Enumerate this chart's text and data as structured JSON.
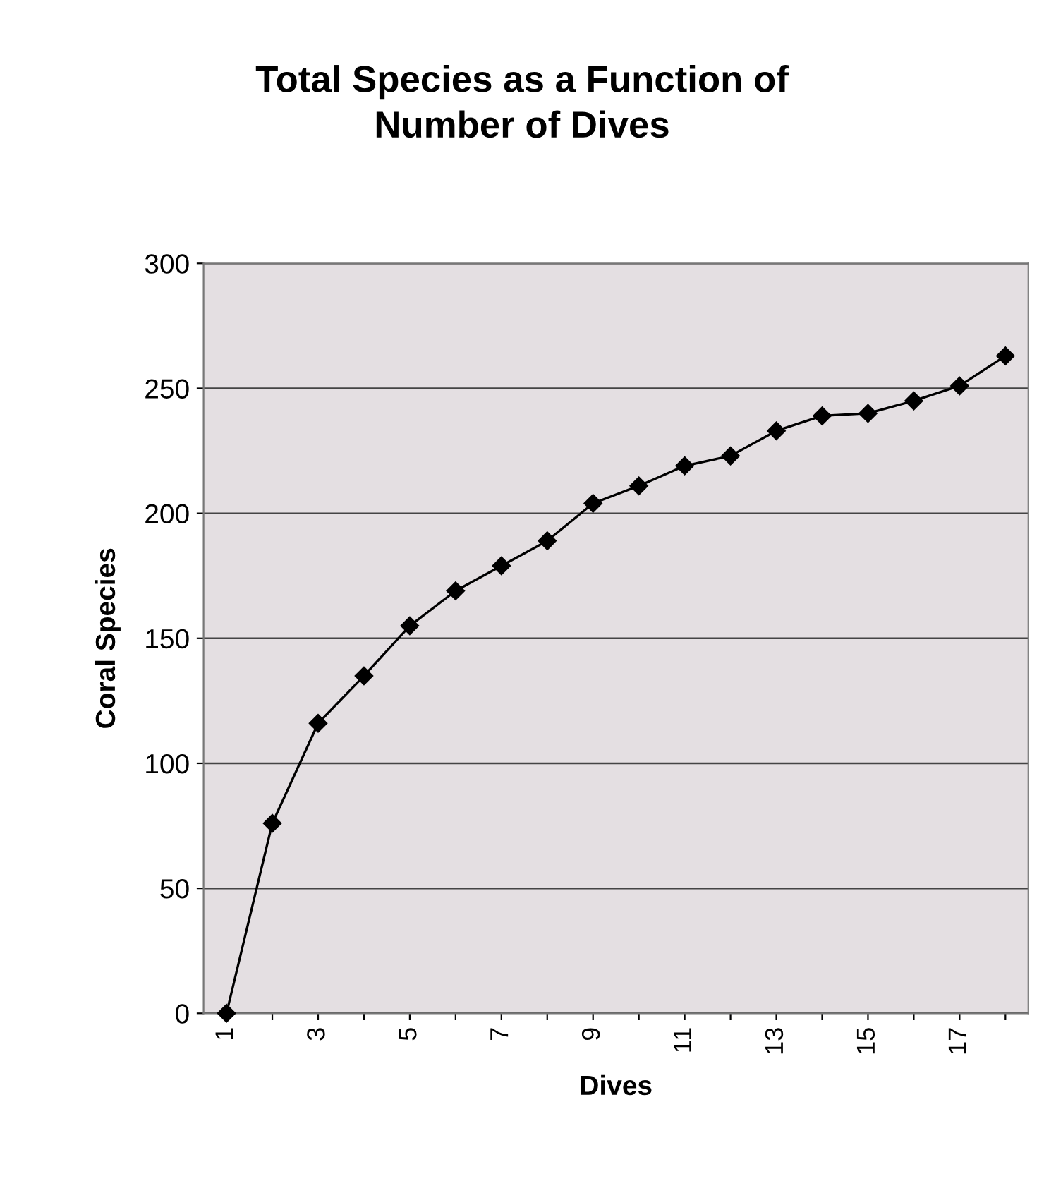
{
  "chart_data": {
    "type": "line",
    "title": "Total Species as a Function of\nNumber of Dives",
    "xlabel": "Dives",
    "ylabel": "Coral Species",
    "categories": [
      "1",
      null,
      "3",
      null,
      "5",
      null,
      "7",
      null,
      "9",
      null,
      "11",
      null,
      "13",
      null,
      "15",
      null,
      "17",
      null
    ],
    "series": [
      {
        "color": "#000000",
        "values": [
          0,
          76,
          116,
          135,
          155,
          169,
          179,
          189,
          204,
          211,
          219,
          223,
          233,
          239,
          240,
          245,
          251,
          263
        ]
      }
    ],
    "ylim": [
      0,
      300
    ],
    "yticks": [
      0,
      50,
      100,
      150,
      200,
      250,
      300
    ],
    "grid": "y",
    "marker": "diamond",
    "line_style": "solid"
  }
}
